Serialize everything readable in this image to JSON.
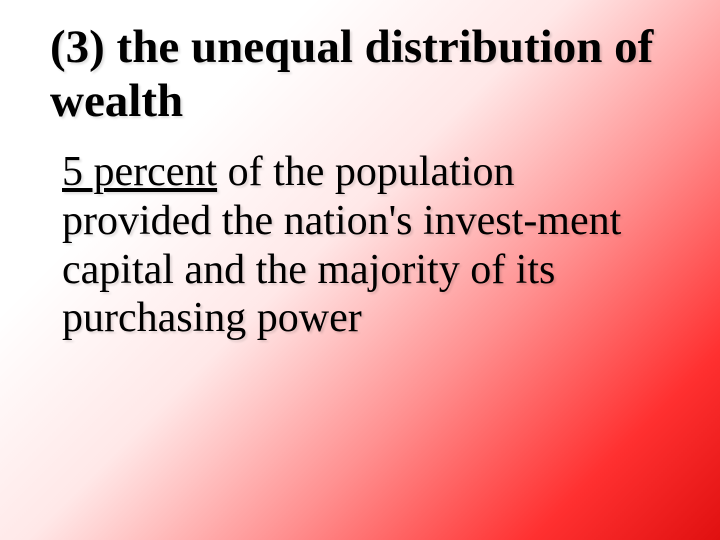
{
  "slide": {
    "heading": "(3) the unequal distribution of wealth",
    "body_underlined": "5 percent",
    "body_rest": " of the population provided the nation's invest-ment capital and the majority of its purchasing power",
    "background_gradient_start": "#ffffff",
    "background_gradient_end": "#e01010",
    "heading_fontsize": 47,
    "body_fontsize": 42,
    "text_color": "#000000",
    "font_family": "Times New Roman"
  }
}
